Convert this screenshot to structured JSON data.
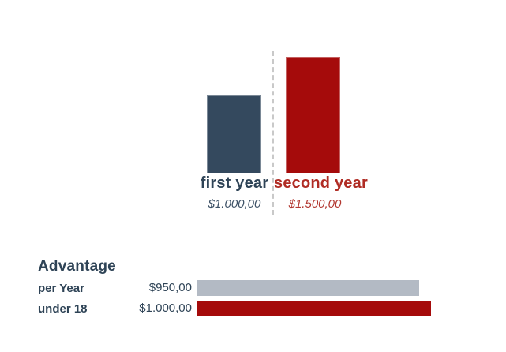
{
  "colors": {
    "primary_blue": "#34495e",
    "primary_red": "#a50b0b",
    "gray_bar": "#b3bac4",
    "text_dark": "#2e4356",
    "text_red": "#b02c24",
    "divider_gray": "#c9c9c9"
  },
  "chart_data": [
    {
      "type": "bar",
      "orientation": "vertical",
      "title": "",
      "categories": [
        "first year",
        "second year"
      ],
      "values": [
        1000,
        1500
      ],
      "value_labels": [
        "$1.000,00",
        "$1.500,00"
      ],
      "colors": [
        "#34495e",
        "#a50b0b"
      ],
      "ylim": [
        0,
        1500
      ],
      "grid": false,
      "divider": "dashed vertical line between categories"
    },
    {
      "type": "bar",
      "orientation": "horizontal",
      "title": "Advantage",
      "categories": [
        "per Year",
        "under 18"
      ],
      "values": [
        950,
        1000
      ],
      "value_labels": [
        "$950,00",
        "$1.000,00"
      ],
      "colors": [
        "#b3bac4",
        "#a50b0b"
      ],
      "xlim": [
        0,
        1000
      ],
      "grid": false
    }
  ]
}
